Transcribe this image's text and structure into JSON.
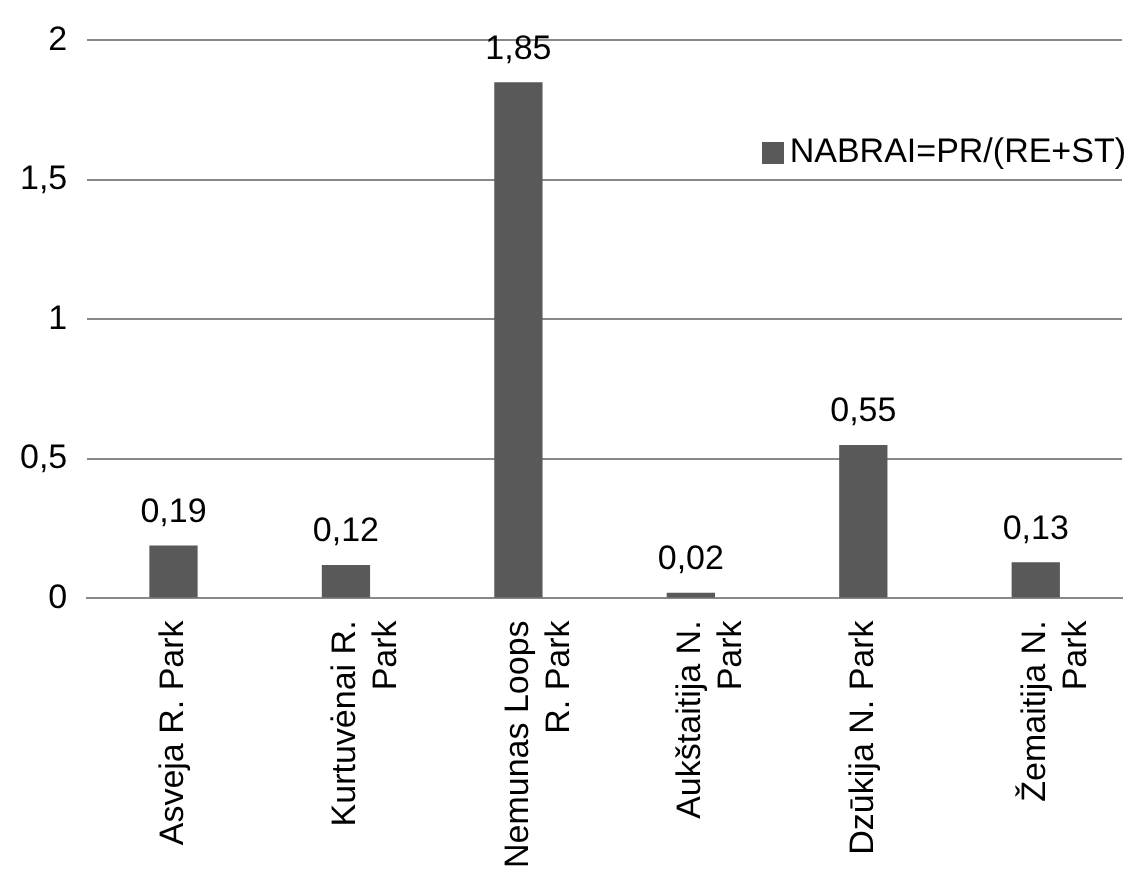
{
  "chart_data": {
    "type": "bar",
    "categories": [
      "Asveja R. Park",
      "Kurtuvėnai R. Park",
      "Nemunas Loops R. Park",
      "Aukštaitija N. Park",
      "Dzūkija N. Park",
      "Žemaitija N. Park"
    ],
    "series": [
      {
        "name": "NABRAI=PR/(RE+ST)",
        "color": "#595959",
        "values": [
          0.19,
          0.12,
          1.85,
          0.02,
          0.55,
          0.13
        ],
        "value_labels": [
          "0,19",
          "0,12",
          "1,85",
          "0,02",
          "0,55",
          "0,13"
        ]
      }
    ],
    "ylim": [
      0,
      2
    ],
    "yticks": [
      0,
      {
        "value": 0.5,
        "label": "0,5"
      },
      1,
      {
        "value": 1.5,
        "label": "1,5"
      },
      2
    ],
    "grid": "y",
    "legend": "top right"
  }
}
